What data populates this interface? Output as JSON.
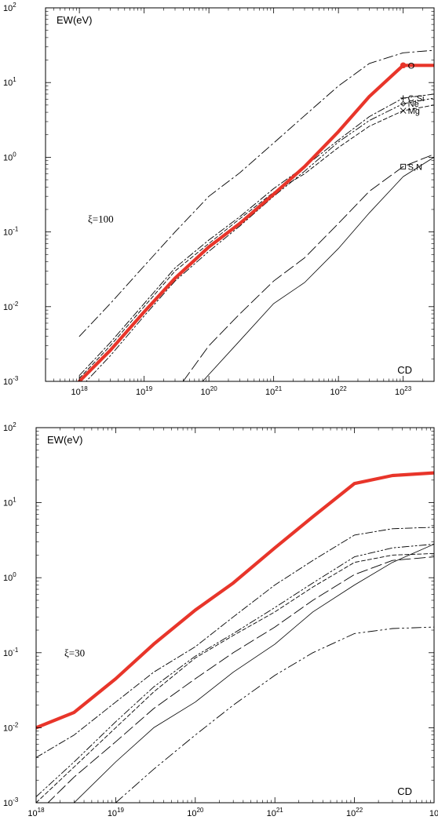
{
  "chart_data": [
    {
      "type": "line",
      "panel": "top",
      "ylabel": "EW(eV)",
      "xlabel": "CD",
      "annotation": "ξ=100",
      "xscale": "log",
      "yscale": "log",
      "xlim": [
        3e+17,
        3e+23
      ],
      "ylim": [
        0.001,
        100
      ],
      "xticks": [
        {
          "base": "10",
          "exp": "18",
          "v": 1e+18
        },
        {
          "base": "10",
          "exp": "19",
          "v": 1e+19
        },
        {
          "base": "10",
          "exp": "20",
          "v": 1e+20
        },
        {
          "base": "10",
          "exp": "21",
          "v": 1e+21
        },
        {
          "base": "10",
          "exp": "22",
          "v": 1e+22
        },
        {
          "base": "10",
          "exp": "23",
          "v": 1e+23
        }
      ],
      "yticks": [
        {
          "base": "10",
          "exp": "-3",
          "v": 0.001
        },
        {
          "base": "10",
          "exp": "-2",
          "v": 0.01
        },
        {
          "base": "10",
          "exp": "-1",
          "v": 0.1
        },
        {
          "base": "10",
          "exp": "0",
          "v": 1
        },
        {
          "base": "10",
          "exp": "1",
          "v": 10
        },
        {
          "base": "10",
          "exp": "2",
          "v": 100
        }
      ],
      "series": [
        {
          "name": "O",
          "style": "thick-red",
          "color": "#e8352a",
          "marker": "circle",
          "x": [
            1e+18,
            3e+18,
            1e+19,
            3e+19,
            1e+20,
            3e+20,
            1e+21,
            3e+21,
            1e+22,
            3e+22,
            1e+23,
            3e+23
          ],
          "y": [
            0.001,
            0.0026,
            0.0085,
            0.024,
            0.063,
            0.13,
            0.32,
            0.75,
            2.2,
            6.5,
            17,
            17
          ]
        },
        {
          "name": "C,Si",
          "style": "dashdot",
          "marker": "plus",
          "x": [
            1e+18,
            3e+18,
            1e+19,
            3e+19,
            1e+20,
            3e+20,
            1e+21,
            3e+21,
            1e+22,
            3e+22,
            1e+23,
            3e+23
          ],
          "y": [
            0.0012,
            0.0033,
            0.011,
            0.033,
            0.078,
            0.16,
            0.38,
            0.75,
            1.7,
            3.5,
            6.2,
            7
          ]
        },
        {
          "name": "Ne",
          "style": "dashdotdot",
          "marker": "diamond",
          "x": [
            1e+18,
            3e+18,
            1e+19,
            3e+19,
            1e+20,
            3e+20,
            1e+21,
            3e+21,
            1e+22,
            3e+22,
            1e+23,
            3e+23
          ],
          "y": [
            0.0008,
            0.0022,
            0.0075,
            0.022,
            0.055,
            0.12,
            0.3,
            0.65,
            1.6,
            3.1,
            5.2,
            6.2
          ]
        },
        {
          "name": "Mg",
          "style": "shortdash",
          "marker": "cross",
          "x": [
            1e+18,
            3e+18,
            1e+19,
            3e+19,
            1e+20,
            3e+20,
            1e+21,
            3e+21,
            1e+22,
            3e+22,
            1e+23,
            3e+23
          ],
          "y": [
            0.0011,
            0.003,
            0.01,
            0.03,
            0.07,
            0.15,
            0.34,
            0.6,
            1.35,
            2.6,
            4.2,
            5
          ]
        },
        {
          "name": "",
          "style": "dashdot-sparse",
          "x": [
            1e+18,
            3e+18,
            1e+19,
            3e+19,
            1e+20,
            3e+20,
            1e+21,
            3e+21,
            1e+22,
            3e+22,
            1e+23,
            3e+23
          ],
          "y": [
            0.004,
            0.011,
            0.035,
            0.1,
            0.3,
            0.62,
            1.55,
            3.6,
            9,
            18,
            25,
            27
          ]
        },
        {
          "name": "S,N",
          "style": "longdash",
          "marker": "square",
          "x": [
            4e+19,
            1e+20,
            3e+20,
            1e+21,
            3e+21,
            1e+22,
            3e+22,
            1e+23,
            3e+23
          ],
          "y": [
            0.001,
            0.003,
            0.008,
            0.022,
            0.045,
            0.13,
            0.35,
            0.75,
            1.1
          ]
        },
        {
          "name": "",
          "style": "solid-thin",
          "x": [
            8e+19,
            3e+20,
            1e+21,
            3e+21,
            1e+22,
            3e+22,
            1e+23,
            3e+23
          ],
          "y": [
            0.001,
            0.0035,
            0.011,
            0.021,
            0.06,
            0.18,
            0.55,
            1.0
          ]
        }
      ]
    },
    {
      "type": "line",
      "panel": "bottom",
      "ylabel": "EW(eV)",
      "xlabel": "CD",
      "annotation": "ξ=30",
      "xscale": "log",
      "yscale": "log",
      "xlim": [
        1e+18,
        1e+23
      ],
      "ylim": [
        0.001,
        100
      ],
      "xticks": [
        {
          "base": "10",
          "exp": "18",
          "v": 1e+18
        },
        {
          "base": "10",
          "exp": "19",
          "v": 1e+19
        },
        {
          "base": "10",
          "exp": "20",
          "v": 1e+20
        },
        {
          "base": "10",
          "exp": "21",
          "v": 1e+21
        },
        {
          "base": "10",
          "exp": "22",
          "v": 1e+22
        },
        {
          "base": "10",
          "exp": "",
          "v": 1e+23
        }
      ],
      "yticks": [
        {
          "base": "10",
          "exp": "-3",
          "v": 0.001
        },
        {
          "base": "10",
          "exp": "-2",
          "v": 0.01
        },
        {
          "base": "10",
          "exp": "-1",
          "v": 0.1
        },
        {
          "base": "10",
          "exp": "0",
          "v": 1
        },
        {
          "base": "10",
          "exp": "1",
          "v": 10
        },
        {
          "base": "10",
          "exp": "2",
          "v": 100
        }
      ],
      "series": [
        {
          "name": "",
          "style": "thick-red",
          "color": "#e8352a",
          "x": [
            1e+18,
            3e+18,
            1e+19,
            3e+19,
            1e+20,
            3e+20,
            1e+21,
            3e+21,
            1e+22,
            3e+22,
            1e+23
          ],
          "y": [
            0.01,
            0.016,
            0.045,
            0.13,
            0.37,
            0.85,
            2.5,
            6.5,
            18,
            23,
            25
          ]
        },
        {
          "name": "",
          "style": "dashdot",
          "x": [
            1e+18,
            3e+18,
            1e+19,
            3e+19,
            1e+20,
            3e+20,
            1e+21,
            3e+21,
            1e+22,
            3e+22,
            1e+23
          ],
          "y": [
            0.004,
            0.008,
            0.022,
            0.055,
            0.12,
            0.3,
            0.8,
            1.7,
            3.7,
            4.5,
            4.7
          ]
        },
        {
          "name": "",
          "style": "dashdotdot",
          "x": [
            1e+18,
            3e+18,
            1e+19,
            3e+19,
            1e+20,
            3e+20,
            1e+21,
            3e+21,
            1e+22,
            3e+22,
            1e+23
          ],
          "y": [
            0.0012,
            0.0035,
            0.012,
            0.035,
            0.09,
            0.18,
            0.4,
            0.85,
            1.9,
            2.5,
            2.8
          ]
        },
        {
          "name": "",
          "style": "shortdash",
          "x": [
            1e+18,
            3e+18,
            1e+19,
            3e+19,
            1e+20,
            3e+20,
            1e+21,
            3e+21,
            1e+22,
            3e+22,
            1e+23
          ],
          "y": [
            0.001,
            0.003,
            0.01,
            0.03,
            0.085,
            0.17,
            0.35,
            0.75,
            1.6,
            2.0,
            2.1
          ]
        },
        {
          "name": "",
          "style": "longdash",
          "x": [
            1e+18,
            3e+18,
            1e+19,
            3e+19,
            1e+20,
            3e+20,
            1e+21,
            3e+21,
            1e+22,
            3e+22,
            1e+23
          ],
          "y": [
            0.0007,
            0.0022,
            0.0065,
            0.018,
            0.045,
            0.1,
            0.22,
            0.5,
            1.1,
            1.7,
            1.9
          ]
        },
        {
          "name": "",
          "style": "solid-thin",
          "x": [
            3e+18,
            1e+19,
            3e+19,
            1e+20,
            3e+20,
            1e+21,
            3e+21,
            1e+22,
            3e+22,
            1e+23
          ],
          "y": [
            0.001,
            0.0035,
            0.01,
            0.022,
            0.055,
            0.13,
            0.35,
            0.8,
            1.6,
            2.8
          ]
        },
        {
          "name": "",
          "style": "dashdotdot-sparse",
          "x": [
            1e+19,
            3e+19,
            1e+20,
            3e+20,
            1e+21,
            3e+21,
            1e+22,
            3e+22,
            1e+23
          ],
          "y": [
            0.001,
            0.0028,
            0.008,
            0.02,
            0.05,
            0.1,
            0.18,
            0.21,
            0.22
          ]
        }
      ]
    }
  ]
}
